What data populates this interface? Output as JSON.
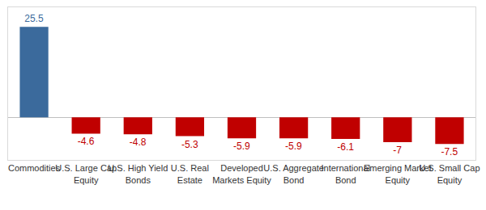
{
  "chart_data": {
    "type": "bar",
    "categories": [
      "Commodities",
      "U.S. Large Cap Equity",
      "U.S. High Yield Bonds",
      "U.S. Real Estate",
      "Developed Markets Equity",
      "U.S. Aggregate Bond",
      "International Bond",
      "Emerging Market Equity",
      "U.S. Small Cap Equity"
    ],
    "values": [
      25.5,
      -4.6,
      -4.8,
      -5.3,
      -5.9,
      -5.9,
      -6.1,
      -7.0,
      -7.5
    ],
    "colors": [
      "#3b6a9c",
      "#c00000",
      "#c00000",
      "#c00000",
      "#c00000",
      "#c00000",
      "#c00000",
      "#c00000",
      "#c00000"
    ],
    "ylim": [
      -12,
      31
    ],
    "yticks": [
      0
    ],
    "grid": false,
    "data_labels": true,
    "tick_labels": "x"
  }
}
